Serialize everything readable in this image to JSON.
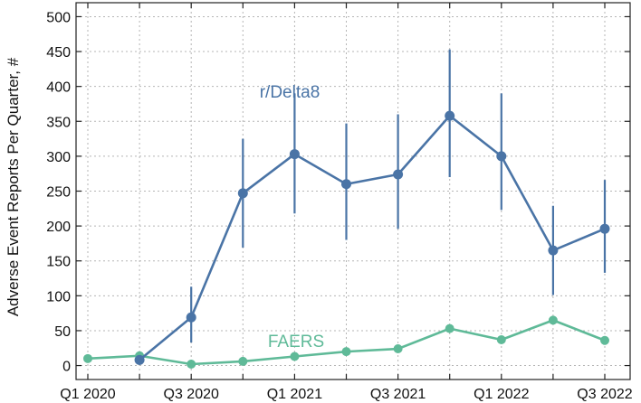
{
  "chart_data": {
    "type": "line",
    "title": "",
    "xlabel": "",
    "ylabel": "Adverse Event Reports Per Quarter, #",
    "ylim": [
      -20,
      520
    ],
    "yticks": [
      0,
      50,
      100,
      150,
      200,
      250,
      300,
      350,
      400,
      450,
      500
    ],
    "grid": true,
    "x_count": 11,
    "xtick_labels": [
      {
        "index": 0,
        "label": "Q1 2020"
      },
      {
        "index": 2,
        "label": "Q3 2020"
      },
      {
        "index": 4,
        "label": "Q1 2021"
      },
      {
        "index": 6,
        "label": "Q3 2021"
      },
      {
        "index": 8,
        "label": "Q1 2022"
      },
      {
        "index": 10,
        "label": "Q3 2022"
      }
    ],
    "series": [
      {
        "name": "r/Delta8",
        "color": "#4a74a6",
        "start_index": 1,
        "values": [
          8,
          69,
          247,
          303,
          260,
          274,
          358,
          300,
          165,
          196
        ],
        "error_low": [
          1,
          33,
          169,
          218,
          180,
          196,
          270,
          223,
          101,
          133
        ],
        "error_high": [
          15,
          113,
          325,
          390,
          347,
          360,
          453,
          390,
          229,
          266
        ]
      },
      {
        "name": "FAERS",
        "color": "#5fba98",
        "start_index": 0,
        "values": [
          10,
          14,
          2,
          6,
          13,
          20,
          24,
          53,
          37,
          65,
          36
        ]
      }
    ]
  }
}
